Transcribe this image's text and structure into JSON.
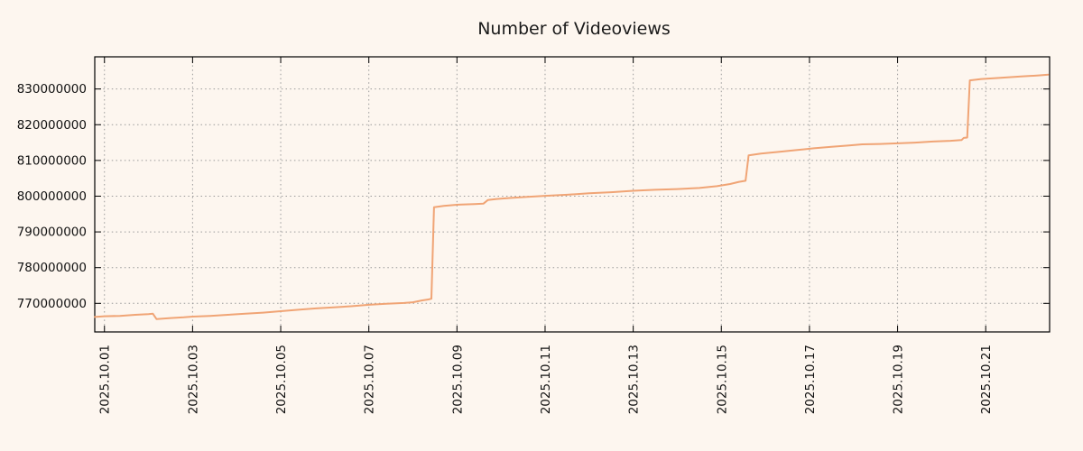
{
  "colors": {
    "background": "#fdf6ef",
    "line": "#f0a475",
    "grid": "#9a9a9a",
    "axis": "#000000",
    "text": "#1a1a1a"
  },
  "chart_data": {
    "type": "line",
    "title": "Number of Videoviews",
    "x_unit": "days since 2025.10.01",
    "xlim": [
      -0.22,
      21.45
    ],
    "ylim": [
      762000000,
      839000000
    ],
    "grid": "dotted",
    "legend": "none",
    "x_ticks": [
      {
        "pos": 0,
        "label": "2025.10.01"
      },
      {
        "pos": 2,
        "label": "2025.10.03"
      },
      {
        "pos": 4,
        "label": "2025.10.05"
      },
      {
        "pos": 6,
        "label": "2025.10.07"
      },
      {
        "pos": 8,
        "label": "2025.10.09"
      },
      {
        "pos": 10,
        "label": "2025.10.11"
      },
      {
        "pos": 12,
        "label": "2025.10.13"
      },
      {
        "pos": 14,
        "label": "2025.10.15"
      },
      {
        "pos": 16,
        "label": "2025.10.17"
      },
      {
        "pos": 18,
        "label": "2025.10.19"
      },
      {
        "pos": 20,
        "label": "2025.10.21"
      }
    ],
    "y_ticks": [
      770000000,
      780000000,
      790000000,
      800000000,
      810000000,
      820000000,
      830000000
    ],
    "series": [
      {
        "name": "videoviews",
        "color": "#f0a475",
        "points": [
          [
            -0.22,
            766200000
          ],
          [
            0,
            766400000
          ],
          [
            0.35,
            766500000
          ],
          [
            0.7,
            766800000
          ],
          [
            1.0,
            767000000
          ],
          [
            1.1,
            767100000
          ],
          [
            1.18,
            765600000
          ],
          [
            1.5,
            765900000
          ],
          [
            1.8,
            766100000
          ],
          [
            2.0,
            766300000
          ],
          [
            2.4,
            766500000
          ],
          [
            2.8,
            766800000
          ],
          [
            3.2,
            767100000
          ],
          [
            3.6,
            767400000
          ],
          [
            4.0,
            767800000
          ],
          [
            4.4,
            768200000
          ],
          [
            4.8,
            768600000
          ],
          [
            5.2,
            768900000
          ],
          [
            5.6,
            769200000
          ],
          [
            6.0,
            769600000
          ],
          [
            6.4,
            769900000
          ],
          [
            6.8,
            770100000
          ],
          [
            7.0,
            770300000
          ],
          [
            7.2,
            770800000
          ],
          [
            7.35,
            771100000
          ],
          [
            7.42,
            771300000
          ],
          [
            7.48,
            796900000
          ],
          [
            7.7,
            797300000
          ],
          [
            8.0,
            797600000
          ],
          [
            8.4,
            797800000
          ],
          [
            8.6,
            797900000
          ],
          [
            8.7,
            798900000
          ],
          [
            8.9,
            799200000
          ],
          [
            9.2,
            799500000
          ],
          [
            9.6,
            799800000
          ],
          [
            10.0,
            800100000
          ],
          [
            10.5,
            800400000
          ],
          [
            11.0,
            800800000
          ],
          [
            11.5,
            801100000
          ],
          [
            12.0,
            801500000
          ],
          [
            12.5,
            801800000
          ],
          [
            13.0,
            802000000
          ],
          [
            13.5,
            802300000
          ],
          [
            13.9,
            802800000
          ],
          [
            14.2,
            803400000
          ],
          [
            14.4,
            804000000
          ],
          [
            14.55,
            804300000
          ],
          [
            14.62,
            811400000
          ],
          [
            14.9,
            811900000
          ],
          [
            15.3,
            812400000
          ],
          [
            15.7,
            812900000
          ],
          [
            16.1,
            813400000
          ],
          [
            16.5,
            813800000
          ],
          [
            16.9,
            814200000
          ],
          [
            17.2,
            814500000
          ],
          [
            17.6,
            814600000
          ],
          [
            18.0,
            814800000
          ],
          [
            18.4,
            815000000
          ],
          [
            18.8,
            815300000
          ],
          [
            19.2,
            815500000
          ],
          [
            19.45,
            815700000
          ],
          [
            19.5,
            816300000
          ],
          [
            19.58,
            816400000
          ],
          [
            19.64,
            832400000
          ],
          [
            19.9,
            832800000
          ],
          [
            20.3,
            833100000
          ],
          [
            20.8,
            833500000
          ],
          [
            21.2,
            833800000
          ],
          [
            21.42,
            834000000
          ]
        ]
      }
    ]
  }
}
